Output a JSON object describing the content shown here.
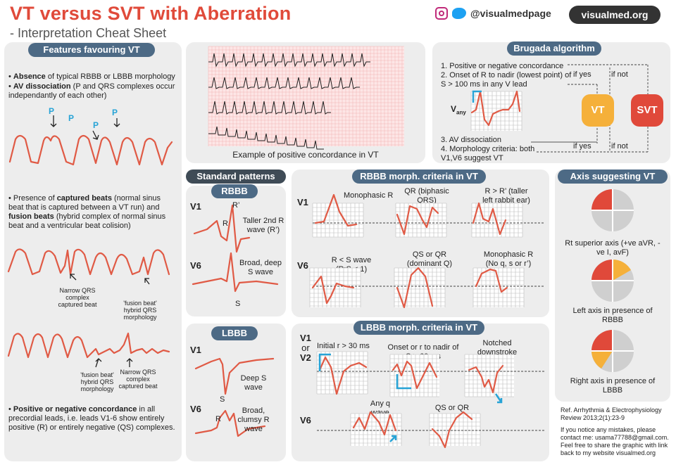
{
  "header": {
    "title": "VT versus SVT with Aberration",
    "subtitle": "- Interpretation Cheat Sheet",
    "social_handle": "@visualmedpage",
    "website": "visualmed.org"
  },
  "vt_features": {
    "heading": "Features favouring VT",
    "b1_bold": "Absence",
    "b1_rest": " of typical RBBB or LBBB morphology",
    "b2_bold": "AV dissociation",
    "b2_rest": " (P and QRS complexes occur independantly of each other)",
    "p_label": "P",
    "b3_pre": "Presence of ",
    "b3_bold1": "captured beats",
    "b3_mid": " (normal sinus beat that is captured between a VT run) and ",
    "b3_bold2": "fusion beats",
    "b3_rest": " (hybrid complex of normal sinus beat and a ventricular beat colision)",
    "ann_narrow": "Narrow QRS complex captured beat",
    "ann_fusion": "'fusion beat' hybrid QRS morphology",
    "b4_bold": "Positive or negative concordance",
    "b4_rest": " in all precordial leads, i.e. leads V1-6 show entirely positive (R) or entirely negative (QS) complexes."
  },
  "ecg_example": {
    "caption": "Example of positive concordance in VT"
  },
  "brugada": {
    "heading": "Brugada algorithm",
    "c1": "1. Positive or negative concordance",
    "c2": "2. Onset of R to nadir (lowest point) of S > 100 ms in any V lead",
    "vany": "V",
    "vany_sub": "any",
    "c3": "3. AV dissociation",
    "c4": "4. Morphology criteria: both V1,V6 suggest VT",
    "if_yes": "if yes",
    "if_not": "if not",
    "vt": "VT",
    "svt": "SVT",
    "colors": {
      "vt": "#f5b03a",
      "svt": "#e0493a"
    }
  },
  "standard": {
    "heading": "Standard patterns",
    "rbbb": "RBBB",
    "lbbb": "LBBB",
    "v1": "V1",
    "v6": "V6",
    "r_prime": "R’",
    "r": "R",
    "s": "S",
    "rbbb_v1_note": "Taller 2nd R wave (R’)",
    "rbbb_v6_note": "Broad, deep S wave",
    "lbbb_v1_note": "Deep S wave",
    "lbbb_v6_note": "Broad, clumsy R wave"
  },
  "rbbb_vt": {
    "heading": "RBBB morph. criteria in VT",
    "v1": "V1",
    "v6": "V6",
    "m1": "Monophasic R",
    "m2": "QR (biphasic QRS)",
    "m3": "R > R’ (taller left rabbit ear)",
    "m4": "R < S wave (R:S < 1)",
    "m5": "QS or QR (dominant Q)",
    "m6": "Monophasic R (No q, s or r’)"
  },
  "lbbb_vt": {
    "heading": "LBBB morph. criteria in VT",
    "v1": "V1",
    "or": "or",
    "v2": "V2",
    "v6": "V6",
    "m1": "Initial r > 30 ms",
    "m2": "Onset or r to nadir of S > 60 ms",
    "m3": "Notched downstroke",
    "m4": "Any q wave",
    "m5": "QS or QR pattern"
  },
  "axis": {
    "heading": "Axis suggesting VT",
    "a1": "Rt superior axis (+ve aVR, -ve I, avF)",
    "a2": "Left axis in presence of RBBB",
    "a3": "Right axis in presence of LBBB",
    "colors": {
      "red": "#e0493a",
      "orange": "#f5b03a",
      "grey": "#cfcfcf"
    }
  },
  "ref": {
    "citation": "Ref. Arrhythmia & Electrophysiology Review 2013;2(1):23-9",
    "note": "If you notice any mistakes, please contact me: usama77788@gmail.com. Feel free to share the graphic with link back to my website visualmed.org"
  }
}
